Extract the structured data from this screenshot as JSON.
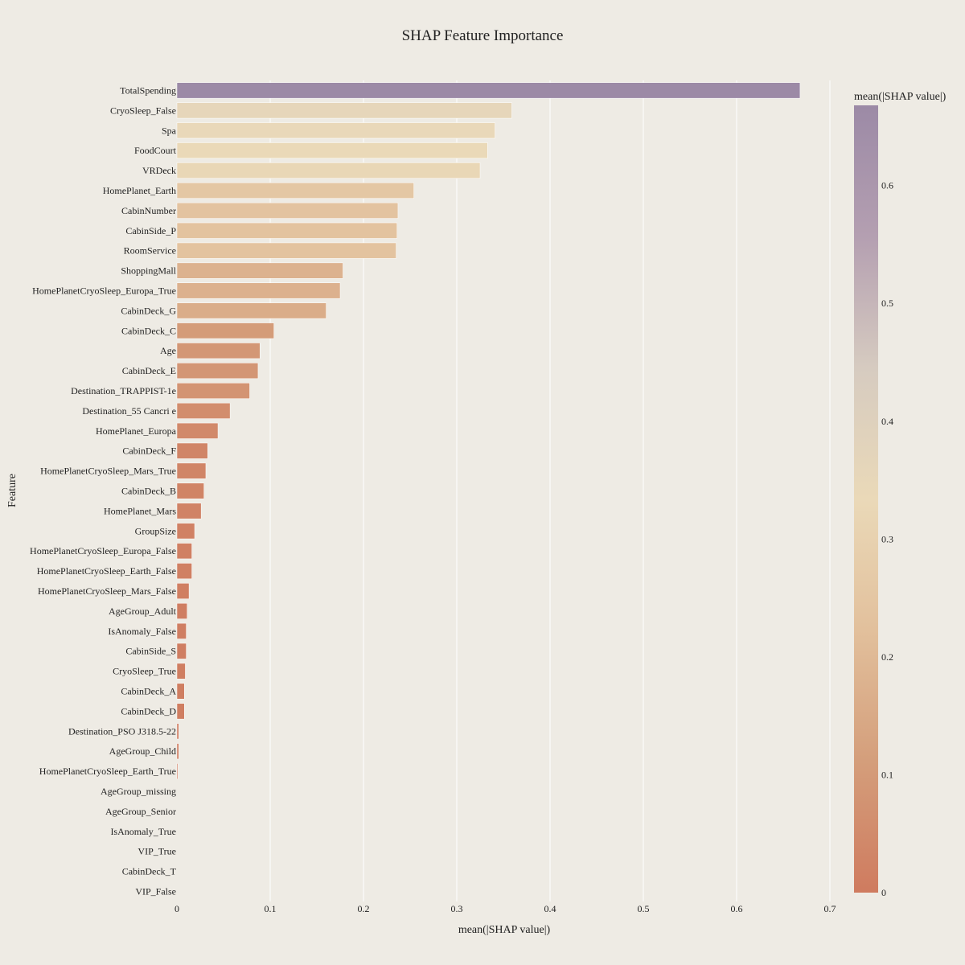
{
  "chart_data": {
    "type": "bar",
    "orientation": "horizontal",
    "title": "SHAP Feature Importance",
    "xlabel": "mean(|SHAP value|)",
    "ylabel": "Feature",
    "xlim": [
      0,
      0.7
    ],
    "x_ticks": [
      0,
      0.1,
      0.2,
      0.3,
      0.4,
      0.5,
      0.6,
      0.7
    ],
    "x_tick_labels": [
      "0",
      "0.1",
      "0.2",
      "0.3",
      "0.4",
      "0.5",
      "0.6",
      "0.7"
    ],
    "grid": true,
    "colorbar": {
      "title": "mean(|SHAP value|)",
      "range": [
        0,
        0.668
      ],
      "ticks": [
        0,
        0.1,
        0.2,
        0.3,
        0.4,
        0.5,
        0.6
      ],
      "tick_labels": [
        "0",
        "0.1",
        "0.2",
        "0.3",
        "0.4",
        "0.5",
        "0.6"
      ],
      "colorscale": [
        "#cf7b5f",
        "#d49e7b",
        "#e2c09c",
        "#ead9b8",
        "#d6cbc0",
        "#b49fb1",
        "#9c8aa6"
      ]
    },
    "categories": [
      "TotalSpending",
      "CryoSleep_False",
      "Spa",
      "FoodCourt",
      "VRDeck",
      "HomePlanet_Earth",
      "CabinNumber",
      "CabinSide_P",
      "RoomService",
      "ShoppingMall",
      "HomePlanetCryoSleep_Europa_True",
      "CabinDeck_G",
      "CabinDeck_C",
      "Age",
      "CabinDeck_E",
      "Destination_TRAPPIST-1e",
      "Destination_55 Cancri e",
      "HomePlanet_Europa",
      "CabinDeck_F",
      "HomePlanetCryoSleep_Mars_True",
      "CabinDeck_B",
      "HomePlanet_Mars",
      "GroupSize",
      "HomePlanetCryoSleep_Europa_False",
      "HomePlanetCryoSleep_Earth_False",
      "HomePlanetCryoSleep_Mars_False",
      "AgeGroup_Adult",
      "IsAnomaly_False",
      "CabinSide_S",
      "CryoSleep_True",
      "CabinDeck_A",
      "CabinDeck_D",
      "Destination_PSO J318.5-22",
      "AgeGroup_Child",
      "HomePlanetCryoSleep_Earth_True",
      "AgeGroup_missing",
      "AgeGroup_Senior",
      "IsAnomaly_True",
      "VIP_True",
      "CabinDeck_T",
      "VIP_False"
    ],
    "values": [
      0.668,
      0.359,
      0.341,
      0.333,
      0.325,
      0.254,
      0.237,
      0.236,
      0.235,
      0.178,
      0.175,
      0.16,
      0.104,
      0.089,
      0.087,
      0.078,
      0.057,
      0.044,
      0.033,
      0.031,
      0.029,
      0.026,
      0.019,
      0.016,
      0.016,
      0.013,
      0.011,
      0.01,
      0.01,
      0.009,
      0.008,
      0.008,
      0.002,
      0.002,
      0.001,
      0,
      0,
      0,
      0,
      0,
      0
    ]
  }
}
